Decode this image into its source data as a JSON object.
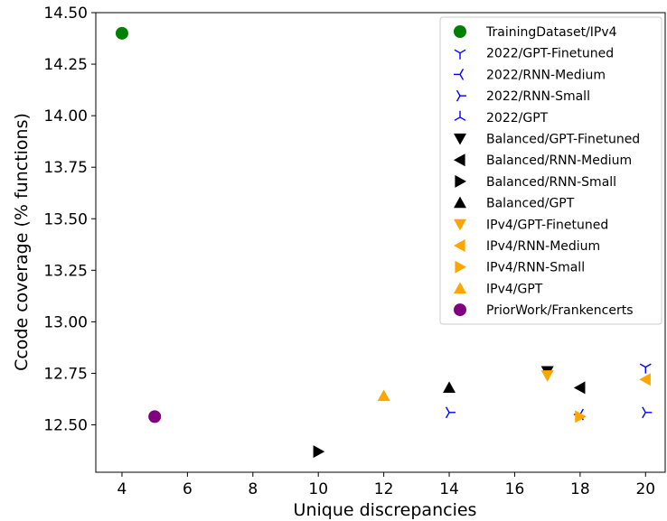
{
  "chart_data": {
    "type": "scatter",
    "title": "",
    "xlabel": "Unique discrepancies",
    "ylabel": "Ccode coverage (% functions)",
    "xlim": [
      3.2,
      20.6
    ],
    "ylim": [
      12.27,
      14.5
    ],
    "xticks": [
      4,
      6,
      8,
      10,
      12,
      14,
      16,
      18,
      20
    ],
    "yticks": [
      12.5,
      12.75,
      13.0,
      13.25,
      13.5,
      13.75,
      14.0,
      14.25,
      14.5
    ],
    "ytick_labels": [
      "12.50",
      "12.75",
      "13.00",
      "13.25",
      "13.50",
      "13.75",
      "14.00",
      "14.25",
      "14.50"
    ],
    "grid": false,
    "legend_position": "top-right",
    "series": [
      {
        "name": "TrainingDataset/IPv4",
        "marker": "circle",
        "color": "#008000",
        "points": [
          {
            "x": 4,
            "y": 14.4
          }
        ]
      },
      {
        "name": "2022/GPT-Finetuned",
        "marker": "tri_down",
        "color": "#0000ff",
        "points": [
          {
            "x": 20,
            "y": 12.78
          }
        ]
      },
      {
        "name": "2022/RNN-Medium",
        "marker": "tri_left",
        "color": "#0000ff",
        "points": [
          {
            "x": 18,
            "y": 12.55
          }
        ]
      },
      {
        "name": "2022/RNN-Small",
        "marker": "tri_right",
        "color": "#0000ff",
        "points": [
          {
            "x": 14,
            "y": 12.56
          },
          {
            "x": 20,
            "y": 12.56
          }
        ]
      },
      {
        "name": "2022/GPT",
        "marker": "tri_up",
        "color": "#0000ff",
        "points": []
      },
      {
        "name": "Balanced/GPT-Finetuned",
        "marker": "triangle_down",
        "color": "#000000",
        "points": [
          {
            "x": 17,
            "y": 12.76
          }
        ]
      },
      {
        "name": "Balanced/RNN-Medium",
        "marker": "triangle_left",
        "color": "#000000",
        "points": [
          {
            "x": 18,
            "y": 12.68
          }
        ]
      },
      {
        "name": "Balanced/RNN-Small",
        "marker": "triangle_right",
        "color": "#000000",
        "points": [
          {
            "x": 10,
            "y": 12.37
          }
        ]
      },
      {
        "name": "Balanced/GPT",
        "marker": "triangle_up",
        "color": "#000000",
        "points": [
          {
            "x": 14,
            "y": 12.68
          }
        ]
      },
      {
        "name": "IPv4/GPT-Finetuned",
        "marker": "triangle_down",
        "color": "#ffa500",
        "points": [
          {
            "x": 17,
            "y": 12.74
          }
        ]
      },
      {
        "name": "IPv4/RNN-Medium",
        "marker": "triangle_left",
        "color": "#ffa500",
        "points": [
          {
            "x": 20,
            "y": 12.72
          }
        ]
      },
      {
        "name": "IPv4/RNN-Small",
        "marker": "triangle_right",
        "color": "#ffa500",
        "points": [
          {
            "x": 18,
            "y": 12.54
          }
        ]
      },
      {
        "name": "IPv4/GPT",
        "marker": "triangle_up",
        "color": "#ffa500",
        "points": [
          {
            "x": 12,
            "y": 12.64
          }
        ]
      },
      {
        "name": "PriorWork/Frankencerts",
        "marker": "circle",
        "color": "#800080",
        "points": [
          {
            "x": 5,
            "y": 12.54
          }
        ]
      }
    ]
  }
}
